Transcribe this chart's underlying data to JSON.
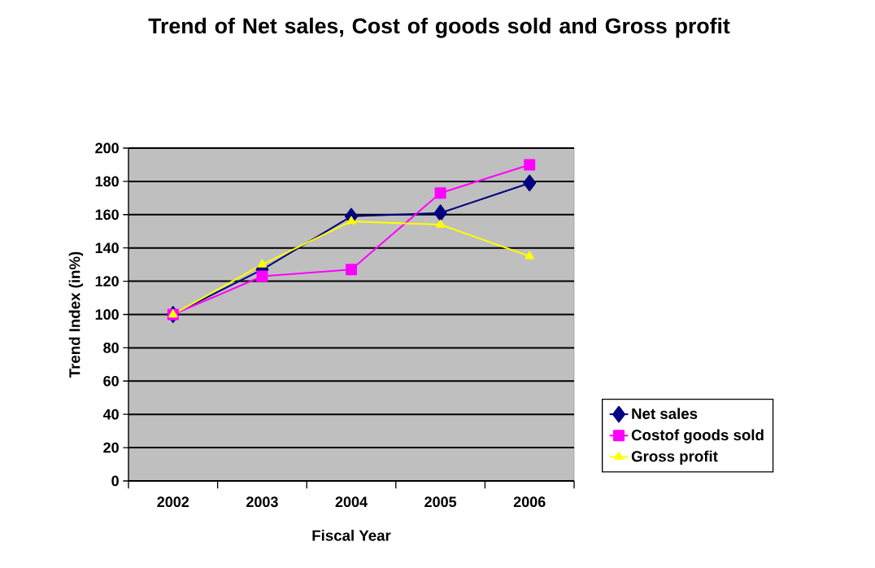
{
  "chart_data": {
    "type": "line",
    "title": "Trend of Net sales, Cost of goods sold and Gross profit",
    "xlabel": "Fiscal Year",
    "ylabel": "Trend Index (in%)",
    "categories": [
      "2002",
      "2003",
      "2004",
      "2005",
      "2006"
    ],
    "series": [
      {
        "name": "Net sales",
        "color": "#000080",
        "marker": "diamond",
        "values": [
          100,
          127,
          159,
          161,
          179
        ]
      },
      {
        "name": "Costof goods sold",
        "color": "#ff00ff",
        "marker": "square",
        "values": [
          100,
          123,
          127,
          173,
          190
        ]
      },
      {
        "name": "Gross profit",
        "color": "#ffff00",
        "marker": "triangle",
        "values": [
          100,
          130,
          156,
          154,
          135
        ]
      }
    ],
    "ylim": [
      0,
      200
    ],
    "yticks": [
      0,
      20,
      40,
      60,
      80,
      100,
      120,
      140,
      160,
      180,
      200
    ],
    "grid": "y",
    "legend": "right",
    "line_style": "solid"
  }
}
